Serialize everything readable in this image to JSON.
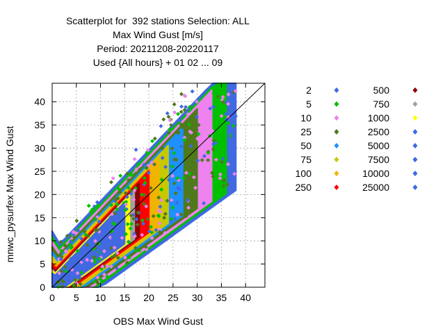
{
  "chart_data": {
    "type": "scatter",
    "title_lines": [
      "Scatterplot for  392 stations Selection: ALL",
      "Max Wind Gust [m/s]",
      "Period: 20211208-20220117",
      "Used {All hours} + 01 02 ... 09"
    ],
    "xlabel": "OBS Max Wind Gust",
    "ylabel": "mnwc_pysurfex Max Wind Gust",
    "xlim": [
      0,
      44
    ],
    "ylim": [
      0,
      44
    ],
    "xticks": [
      0,
      5,
      10,
      15,
      20,
      25,
      30,
      35,
      40
    ],
    "yticks": [
      0,
      5,
      10,
      15,
      20,
      25,
      30,
      35,
      40
    ],
    "grid": true,
    "legend_position": "right",
    "diagonal": true,
    "series": [
      {
        "name": "2",
        "color": "#4169e1",
        "spread": 7.6,
        "xmax": 38
      },
      {
        "name": "5",
        "color": "#00c000",
        "spread": 6.8,
        "xmax": 36
      },
      {
        "name": "10",
        "color": "#ee82ee",
        "spread": 6.2,
        "xmax": 33
      },
      {
        "name": "25",
        "color": "#4e7a1c",
        "spread": 5.5,
        "xmax": 30
      },
      {
        "name": "50",
        "color": "#1e90ff",
        "spread": 4.8,
        "xmax": 27
      },
      {
        "name": "75",
        "color": "#c8c800",
        "spread": 4.2,
        "xmax": 24
      },
      {
        "name": "100",
        "color": "#f0b400",
        "spread": 3.7,
        "xmax": 22
      },
      {
        "name": "250",
        "color": "#ff0000",
        "spread": 3.2,
        "xmax": 20
      },
      {
        "name": "500",
        "color": "#8b0000",
        "spread": 2.7,
        "xmax": 18
      },
      {
        "name": "750",
        "color": "#a0a0a0",
        "spread": 2.4,
        "xmax": 17
      },
      {
        "name": "1000",
        "color": "#ffff00",
        "spread": 2.2,
        "xmax": 16
      },
      {
        "name": "2500",
        "color": "#4169e1",
        "spread": 1.9,
        "xmax": 15
      },
      {
        "name": "5000",
        "color": "#4169e1",
        "spread": 1.6,
        "xmax": 14
      },
      {
        "name": "7500",
        "color": "#4169e1",
        "spread": 1.3,
        "xmax": 13
      },
      {
        "name": "10000",
        "color": "#4169e1",
        "spread": 1.0,
        "xmax": 12
      },
      {
        "name": "25000",
        "color": "#4169e1",
        "spread": 0.7,
        "xmax": 10
      }
    ]
  }
}
